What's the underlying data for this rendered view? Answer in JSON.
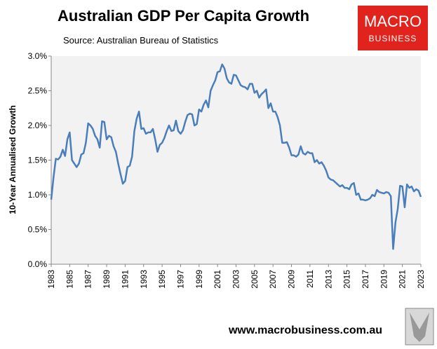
{
  "chart_data": {
    "type": "line",
    "title": "Australian GDP Per Capita Growth",
    "subtitle": "Source: Australian Bureau of Statistics",
    "ylabel": "10-Year Annualised Growth",
    "x": [
      1983.0,
      1983.25,
      1983.5,
      1983.75,
      1984.0,
      1984.25,
      1984.5,
      1984.75,
      1985.0,
      1985.25,
      1985.5,
      1985.75,
      1986.0,
      1986.25,
      1986.5,
      1986.75,
      1987.0,
      1987.25,
      1987.5,
      1987.75,
      1988.0,
      1988.25,
      1988.5,
      1988.75,
      1989.0,
      1989.25,
      1989.5,
      1989.75,
      1990.0,
      1990.25,
      1990.5,
      1990.75,
      1991.0,
      1991.25,
      1991.5,
      1991.75,
      1992.0,
      1992.25,
      1992.5,
      1992.75,
      1993.0,
      1993.25,
      1993.5,
      1993.75,
      1994.0,
      1994.25,
      1994.5,
      1994.75,
      1995.0,
      1995.25,
      1995.5,
      1995.75,
      1996.0,
      1996.25,
      1996.5,
      1996.75,
      1997.0,
      1997.25,
      1997.5,
      1997.75,
      1998.0,
      1998.25,
      1998.5,
      1998.75,
      1999.0,
      1999.25,
      1999.5,
      1999.75,
      2000.0,
      2000.25,
      2000.5,
      2000.75,
      2001.0,
      2001.25,
      2001.5,
      2001.75,
      2002.0,
      2002.25,
      2002.5,
      2002.75,
      2003.0,
      2003.25,
      2003.5,
      2003.75,
      2004.0,
      2004.25,
      2004.5,
      2004.75,
      2005.0,
      2005.25,
      2005.5,
      2005.75,
      2006.0,
      2006.25,
      2006.5,
      2006.75,
      2007.0,
      2007.25,
      2007.5,
      2007.75,
      2008.0,
      2008.25,
      2008.5,
      2008.75,
      2009.0,
      2009.25,
      2009.5,
      2009.75,
      2010.0,
      2010.25,
      2010.5,
      2010.75,
      2011.0,
      2011.25,
      2011.5,
      2011.75,
      2012.0,
      2012.25,
      2012.5,
      2012.75,
      2013.0,
      2013.25,
      2013.5,
      2013.75,
      2014.0,
      2014.25,
      2014.5,
      2014.75,
      2015.0,
      2015.25,
      2015.5,
      2015.75,
      2016.0,
      2016.25,
      2016.5,
      2016.75,
      2017.0,
      2017.25,
      2017.5,
      2017.75,
      2018.0,
      2018.25,
      2018.5,
      2018.75,
      2019.0,
      2019.25,
      2019.5,
      2019.75,
      2020.0,
      2020.25,
      2020.5,
      2020.75,
      2021.0,
      2021.25,
      2021.5,
      2021.75,
      2022.0,
      2022.25,
      2022.5,
      2022.75,
      2023.0
    ],
    "series": [
      {
        "color": "#4a7ebb",
        "values": [
          0.93,
          1.25,
          1.52,
          1.51,
          1.55,
          1.65,
          1.56,
          1.8,
          1.9,
          1.5,
          1.45,
          1.4,
          1.45,
          1.58,
          1.6,
          1.75,
          2.03,
          2.0,
          1.95,
          1.85,
          1.8,
          1.68,
          2.06,
          2.05,
          1.8,
          1.85,
          1.83,
          1.7,
          1.62,
          1.45,
          1.3,
          1.16,
          1.2,
          1.4,
          1.42,
          1.55,
          1.92,
          2.1,
          2.2,
          1.95,
          1.96,
          1.88,
          1.9,
          1.9,
          1.95,
          1.8,
          1.62,
          1.72,
          1.75,
          1.82,
          1.92,
          2.0,
          1.92,
          1.93,
          2.07,
          1.92,
          1.88,
          1.93,
          2.05,
          2.15,
          2.17,
          2.16,
          2.0,
          2.02,
          2.23,
          2.2,
          2.3,
          2.36,
          2.26,
          2.5,
          2.58,
          2.65,
          2.77,
          2.78,
          2.88,
          2.82,
          2.68,
          2.62,
          2.6,
          2.73,
          2.72,
          2.65,
          2.58,
          2.56,
          2.55,
          2.52,
          2.6,
          2.6,
          2.47,
          2.5,
          2.4,
          2.45,
          2.48,
          2.52,
          2.25,
          2.32,
          2.2,
          2.2,
          2.12,
          2.0,
          1.75,
          1.75,
          1.76,
          1.68,
          1.57,
          1.57,
          1.55,
          1.58,
          1.7,
          1.6,
          1.58,
          1.62,
          1.6,
          1.6,
          1.47,
          1.5,
          1.45,
          1.47,
          1.42,
          1.35,
          1.25,
          1.22,
          1.21,
          1.18,
          1.15,
          1.12,
          1.14,
          1.1,
          1.1,
          1.08,
          1.15,
          1.17,
          1.0,
          1.02,
          0.93,
          0.93,
          0.92,
          0.93,
          0.95,
          1.0,
          0.98,
          1.07,
          1.04,
          1.03,
          1.02,
          1.04,
          1.03,
          0.98,
          0.22,
          0.6,
          0.8,
          1.13,
          1.12,
          0.82,
          1.15,
          1.1,
          1.12,
          1.05,
          1.08,
          1.06,
          0.97
        ]
      }
    ],
    "xlim": [
      1983,
      2023
    ],
    "xticks": [
      1983,
      1985,
      1987,
      1989,
      1991,
      1993,
      1995,
      1997,
      1999,
      2001,
      2003,
      2005,
      2007,
      2009,
      2011,
      2013,
      2015,
      2017,
      2019,
      2021,
      2023
    ],
    "ylim": [
      0,
      3
    ],
    "yticks": [
      {
        "value": 0,
        "label": "0.0%"
      },
      {
        "value": 0.5,
        "label": "0.5%"
      },
      {
        "value": 1,
        "label": "1.0%"
      },
      {
        "value": 1.5,
        "label": "1.5%"
      },
      {
        "value": 2,
        "label": "2.0%"
      },
      {
        "value": 2.5,
        "label": "2.5%"
      },
      {
        "value": 3,
        "label": "3.0%"
      }
    ],
    "grid": false
  },
  "logo": {
    "line1": "MACRO",
    "line2": "BUSINESS"
  },
  "footer": "www.macrobusiness.com.au"
}
